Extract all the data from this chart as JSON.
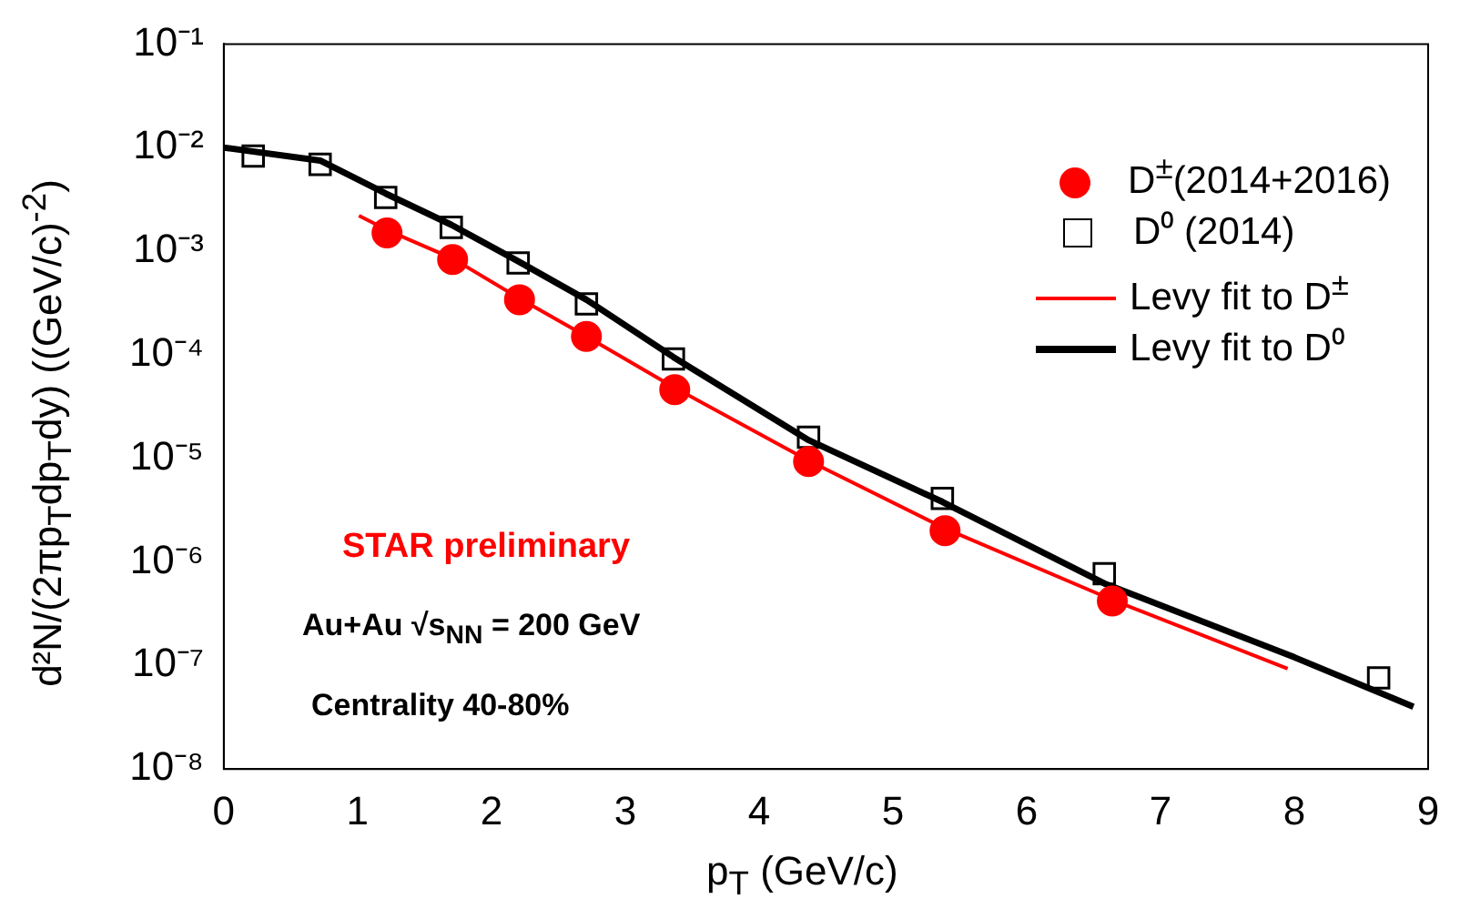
{
  "chart_data": {
    "type": "scatter",
    "xlabel": "p$_{T}$ (GeV/c)",
    "ylabel": "d²N/(2πp$_{T}$dp$_{T}$dy) ((GeV/c)$^{-2}$)",
    "xlim": [
      0,
      9
    ],
    "xticks": [
      0,
      1,
      2,
      3,
      4,
      5,
      6,
      7,
      8,
      9
    ],
    "ylim": [
      1e-08,
      0.1
    ],
    "yticks": [
      {
        "value": 1e-08,
        "label": "10⁻⁸"
      },
      {
        "value": 1e-07,
        "label": "10⁻⁷"
      },
      {
        "value": 1e-06,
        "label": "10⁻⁶"
      },
      {
        "value": 1e-05,
        "label": "10⁻⁵"
      },
      {
        "value": 0.0001,
        "label": "10⁻⁴"
      },
      {
        "value": 0.001,
        "label": "10⁻³"
      },
      {
        "value": 0.01,
        "label": "10⁻²"
      },
      {
        "value": 0.1,
        "label": "10⁻¹"
      }
    ],
    "log": "y",
    "grid": false,
    "legend": "top right",
    "annotations": [
      "STAR preliminary",
      "Au+Au √s$_{NN}$ = 200 GeV",
      "Centrality 40-80%"
    ],
    "series": [
      {
        "name": "D$^{±}$(2014+2016)",
        "marker": "circle",
        "color": "#ff0000",
        "x": [
          1.22,
          1.71,
          2.21,
          2.71,
          3.37,
          4.37,
          5.39,
          6.64
        ],
        "values": [
          0.0015,
          0.00083,
          0.00034,
          0.00015,
          4.6e-05,
          9.3e-06,
          2e-06,
          4.2e-07
        ]
      },
      {
        "name": "D⁰ (2014)",
        "marker": "square",
        "color": "#000000",
        "x": [
          0.22,
          0.72,
          1.21,
          1.7,
          2.2,
          2.71,
          3.36,
          4.37,
          5.37,
          6.58,
          8.63
        ],
        "values": [
          0.0083,
          0.0069,
          0.0033,
          0.0017,
          0.00077,
          0.00031,
          9.1e-05,
          1.6e-05,
          4.1e-06,
          7.7e-07,
          7.6e-08
        ]
      },
      {
        "name": "Levy fit to D$^{±}$",
        "type": "line",
        "marker": "none",
        "line_style": "solid",
        "color": "#ff0000",
        "x": [
          1.01,
          1.22,
          1.71,
          2.21,
          2.71,
          3.37,
          4.37,
          5.39,
          6.64,
          7.95
        ],
        "values": [
          0.0022,
          0.0016,
          0.00085,
          0.00035,
          0.00015,
          4.8e-05,
          9.5e-06,
          2.1e-06,
          4.3e-07,
          9.3e-08
        ]
      },
      {
        "name": "Levy fit to D⁰",
        "type": "line",
        "marker": "none",
        "line_style": "solid",
        "color": "#000000",
        "x": [
          0,
          0.72,
          1.21,
          1.7,
          2.2,
          2.71,
          3.36,
          4.37,
          5.37,
          6.58,
          8.0,
          8.89
        ],
        "values": [
          0.01,
          0.0075,
          0.0036,
          0.0018,
          0.0008,
          0.00034,
          9.5e-05,
          1.5e-05,
          3.8e-06,
          6.2e-07,
          1.2e-07,
          4e-08
        ]
      }
    ]
  }
}
